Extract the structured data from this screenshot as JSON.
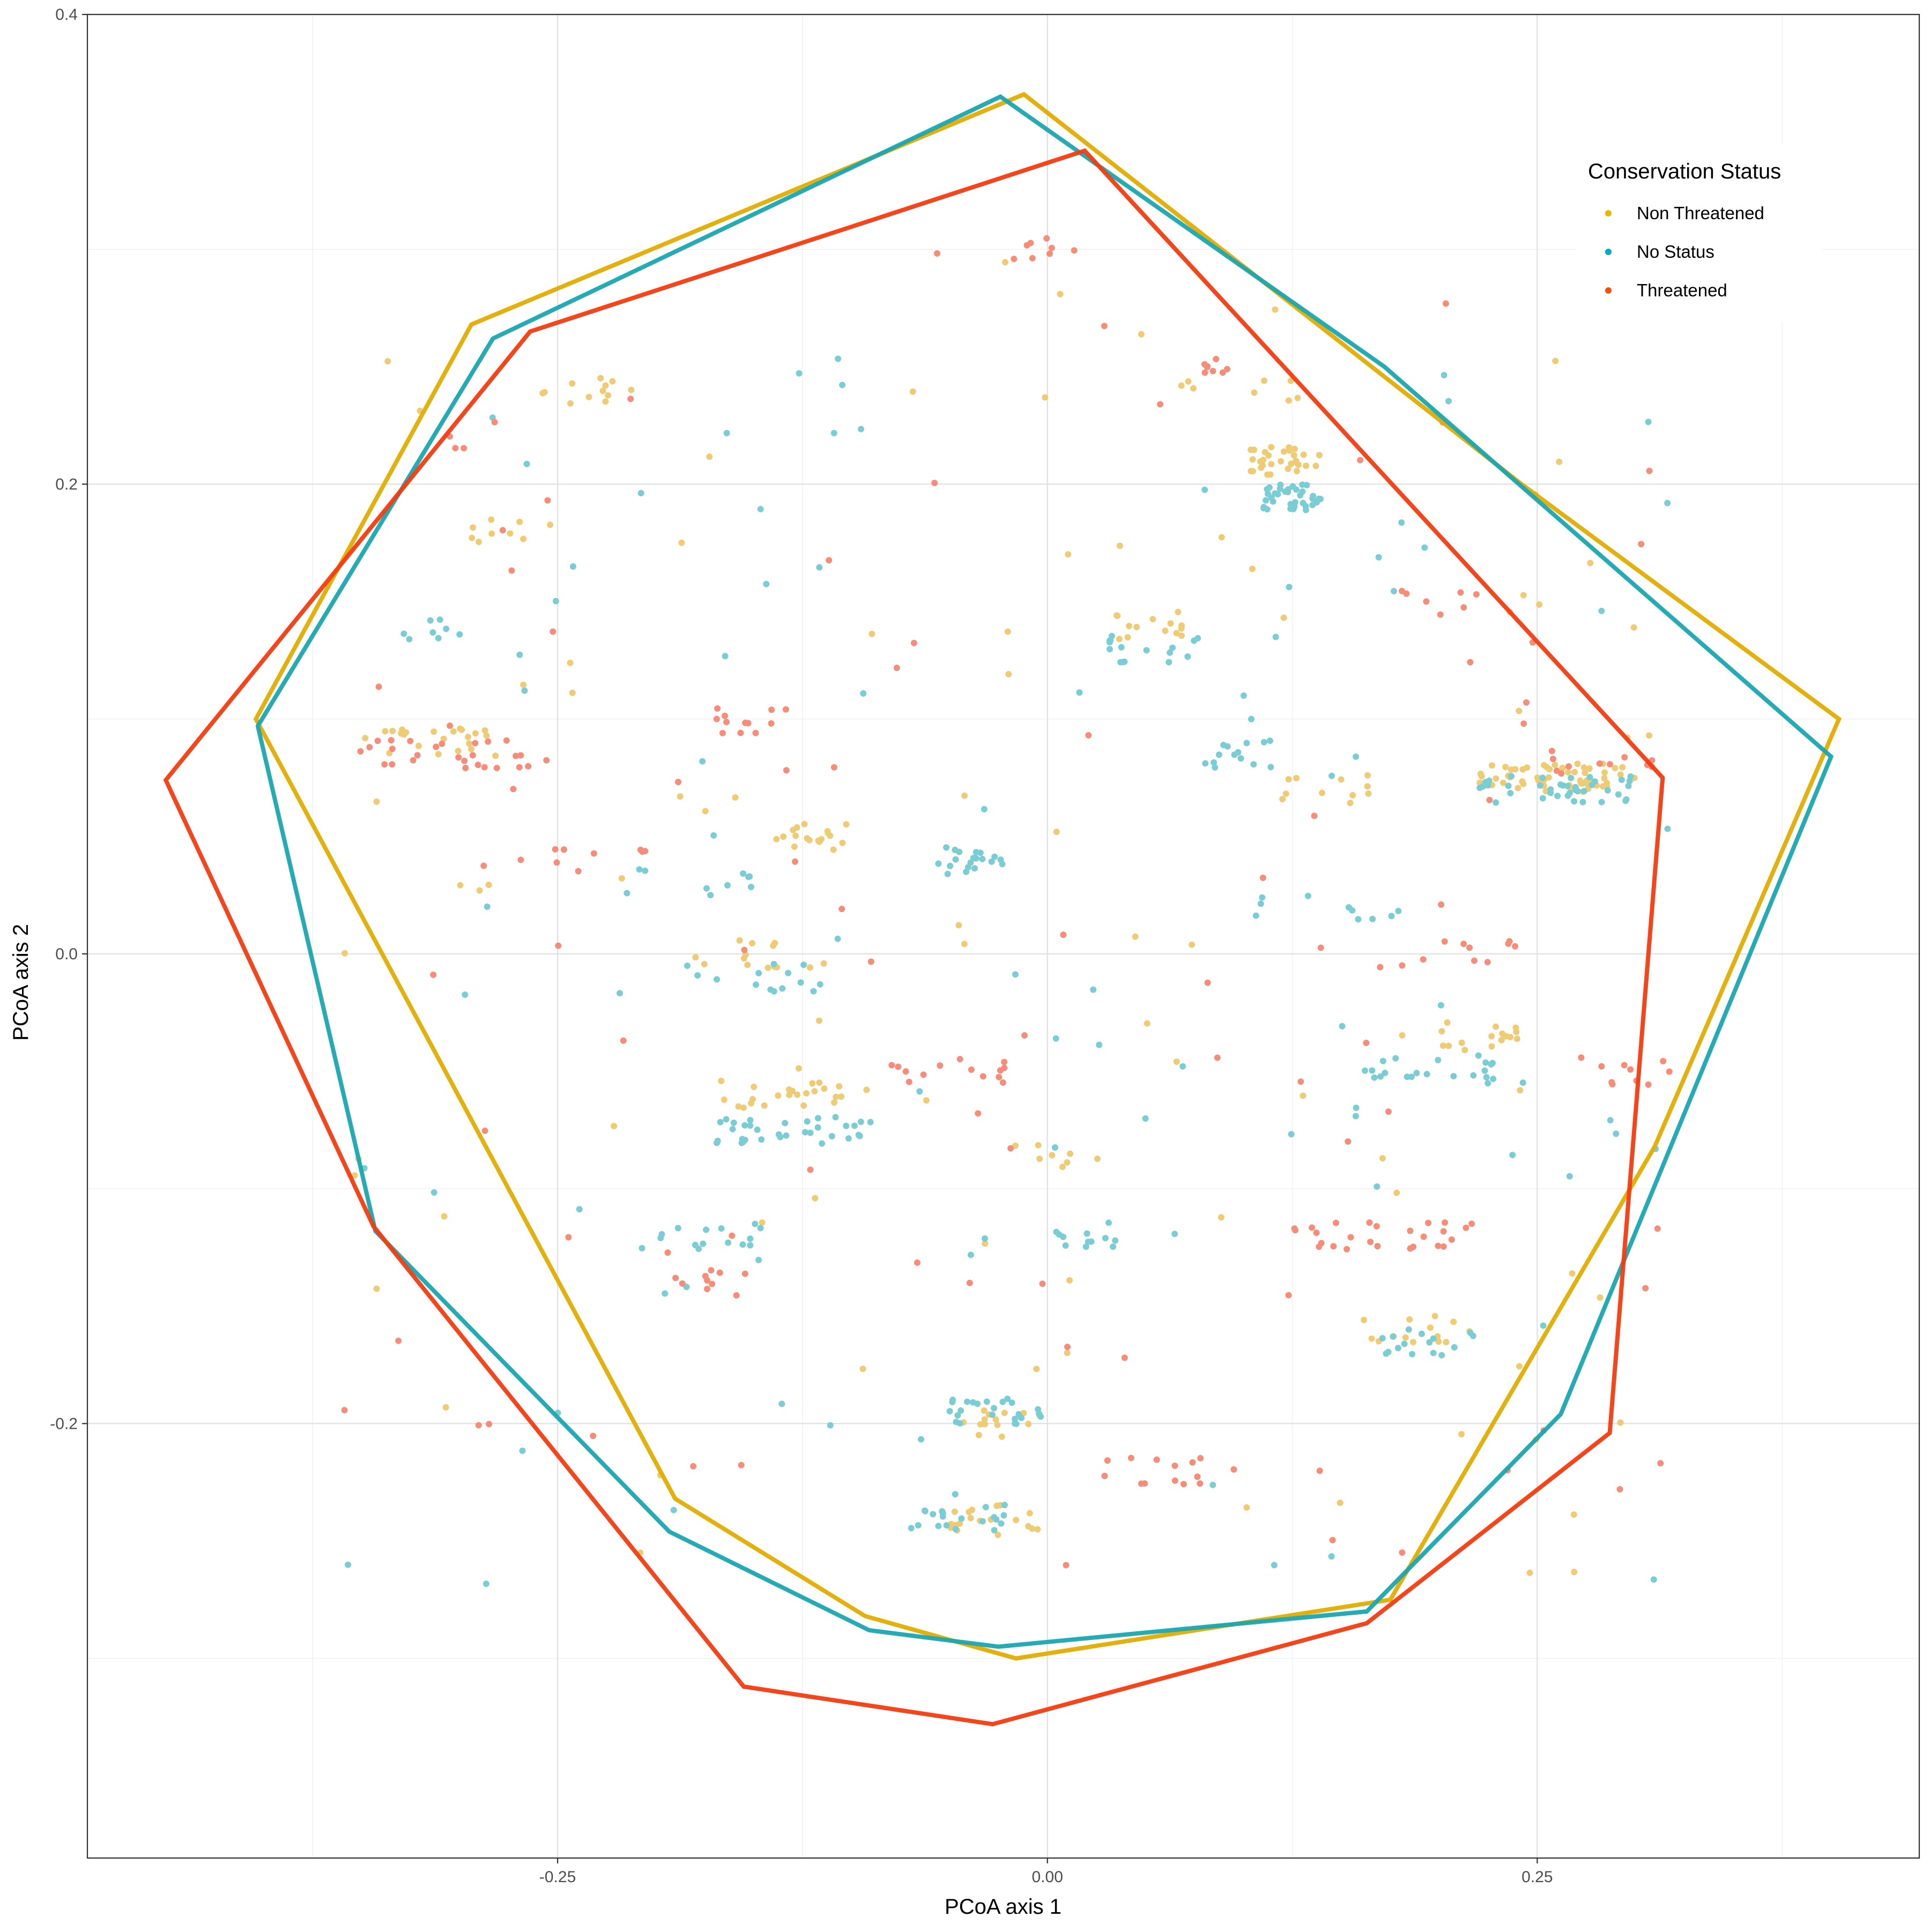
{
  "chart_data": {
    "type": "scatter",
    "title": "",
    "xlabel": "PCoA axis 1",
    "ylabel": "PCoA axis 2",
    "xlim": [
      -0.49,
      0.445
    ],
    "ylim": [
      -0.385,
      0.4
    ],
    "x_ticks": [
      -0.25,
      0.0,
      0.25
    ],
    "x_tick_labels": [
      "-0.25",
      "0.00",
      "0.25"
    ],
    "y_ticks": [
      -0.2,
      0.0,
      0.2,
      0.4
    ],
    "y_tick_labels": [
      "-0.2",
      "0.0",
      "0.2",
      "0.4"
    ],
    "x_minor_ticks": [
      -0.375,
      -0.125,
      0.125,
      0.375
    ],
    "y_minor_ticks": [
      -0.3,
      -0.1,
      0.1,
      0.3
    ],
    "grid": true,
    "legend": {
      "title": "Conservation Status",
      "position": "top-right",
      "entries": [
        "Non Threatened",
        "No Status",
        "Threatened"
      ]
    },
    "series": [
      {
        "name": "Non Threatened",
        "color": "#E7B800",
        "hull_color": "#E1AD01",
        "points_color": "#EECC75",
        "hull": [
          [
            -0.012,
            0.366
          ],
          [
            0.242,
            0.2
          ],
          [
            0.404,
            0.1
          ],
          [
            0.31,
            -0.082
          ],
          [
            0.175,
            -0.275
          ],
          [
            -0.016,
            -0.3
          ],
          [
            -0.093,
            -0.282
          ],
          [
            -0.19,
            -0.232
          ],
          [
            -0.404,
            0.1
          ],
          [
            -0.294,
            0.268
          ],
          [
            -0.012,
            0.366
          ]
        ],
        "clusters": [
          {
            "x0": 0.22,
            "x1": 0.3,
            "y": 0.075,
            "n": 60
          },
          {
            "x0": 0.1,
            "x1": 0.14,
            "y": 0.21,
            "n": 30
          },
          {
            "x0": -0.14,
            "x1": -0.1,
            "y": 0.05,
            "n": 18
          },
          {
            "x0": -0.35,
            "x1": -0.28,
            "y": 0.09,
            "n": 22
          },
          {
            "x0": -0.17,
            "x1": -0.09,
            "y": -0.06,
            "n": 24
          },
          {
            "x0": 0.2,
            "x1": 0.24,
            "y": -0.035,
            "n": 16
          },
          {
            "x0": 0.16,
            "x1": 0.22,
            "y": -0.16,
            "n": 14
          },
          {
            "x0": -0.05,
            "x1": 0.0,
            "y": -0.24,
            "n": 18
          },
          {
            "x0": -0.05,
            "x1": 0.0,
            "y": -0.2,
            "n": 14
          },
          {
            "x0": 0.03,
            "x1": 0.07,
            "y": 0.14,
            "n": 14
          },
          {
            "x0": -0.27,
            "x1": -0.21,
            "y": 0.24,
            "n": 12
          },
          {
            "x0": -0.18,
            "x1": -0.11,
            "y": 0.0,
            "n": 14
          },
          {
            "x0": -0.02,
            "x1": 0.03,
            "y": -0.085,
            "n": 8
          },
          {
            "x0": 0.06,
            "x1": 0.14,
            "y": 0.24,
            "n": 8
          },
          {
            "x0": 0.11,
            "x1": 0.17,
            "y": 0.07,
            "n": 10
          },
          {
            "x0": -0.31,
            "x1": -0.25,
            "y": 0.18,
            "n": 8
          }
        ]
      },
      {
        "name": "No Status",
        "color": "#00AFBB",
        "hull_color": "#1AA6B0",
        "points_color": "#7ACDD3",
        "hull": [
          [
            -0.024,
            0.365
          ],
          [
            0.172,
            0.25
          ],
          [
            0.4,
            0.084
          ],
          [
            0.262,
            -0.196
          ],
          [
            0.163,
            -0.28
          ],
          [
            -0.025,
            -0.295
          ],
          [
            -0.091,
            -0.288
          ],
          [
            -0.193,
            -0.246
          ],
          [
            -0.343,
            -0.118
          ],
          [
            -0.403,
            0.097
          ],
          [
            -0.283,
            0.262
          ],
          [
            -0.024,
            0.365
          ]
        ],
        "clusters": [
          {
            "x0": 0.11,
            "x1": 0.14,
            "y": 0.195,
            "n": 36
          },
          {
            "x0": -0.17,
            "x1": -0.09,
            "y": -0.075,
            "n": 34
          },
          {
            "x0": 0.22,
            "x1": 0.3,
            "y": 0.07,
            "n": 40
          },
          {
            "x0": -0.06,
            "x1": -0.02,
            "y": 0.04,
            "n": 20
          },
          {
            "x0": -0.05,
            "x1": 0.0,
            "y": -0.195,
            "n": 24
          },
          {
            "x0": -0.08,
            "x1": -0.02,
            "y": -0.24,
            "n": 20
          },
          {
            "x0": 0.16,
            "x1": 0.23,
            "y": -0.05,
            "n": 20
          },
          {
            "x0": 0.17,
            "x1": 0.22,
            "y": -0.165,
            "n": 16
          },
          {
            "x0": -0.19,
            "x1": -0.11,
            "y": -0.01,
            "n": 14
          },
          {
            "x0": -0.21,
            "x1": -0.14,
            "y": -0.12,
            "n": 14
          },
          {
            "x0": 0.03,
            "x1": 0.08,
            "y": 0.13,
            "n": 16
          },
          {
            "x0": 0.08,
            "x1": 0.12,
            "y": 0.085,
            "n": 14
          },
          {
            "x0": -0.23,
            "x1": -0.15,
            "y": 0.03,
            "n": 10
          },
          {
            "x0": 0.0,
            "x1": 0.05,
            "y": -0.12,
            "n": 12
          },
          {
            "x0": 0.1,
            "x1": 0.18,
            "y": 0.02,
            "n": 10
          },
          {
            "x0": -0.35,
            "x1": -0.3,
            "y": 0.14,
            "n": 8
          }
        ]
      },
      {
        "name": "Threatened",
        "color": "#FC4E07",
        "hull_color": "#F23C10",
        "points_color": "#F68C7A",
        "hull": [
          [
            0.019,
            0.342
          ],
          [
            0.314,
            0.075
          ],
          [
            0.287,
            -0.204
          ],
          [
            0.163,
            -0.285
          ],
          [
            -0.028,
            -0.328
          ],
          [
            -0.155,
            -0.312
          ],
          [
            -0.344,
            -0.116
          ],
          [
            -0.45,
            0.074
          ],
          [
            -0.264,
            0.265
          ],
          [
            0.019,
            0.342
          ]
        ],
        "clusters": [
          {
            "x0": -0.35,
            "x1": -0.26,
            "y": 0.085,
            "n": 24
          },
          {
            "x0": 0.12,
            "x1": 0.22,
            "y": -0.12,
            "n": 26
          },
          {
            "x0": -0.17,
            "x1": -0.13,
            "y": 0.1,
            "n": 12
          },
          {
            "x0": -0.09,
            "x1": -0.02,
            "y": -0.05,
            "n": 14
          },
          {
            "x0": 0.02,
            "x1": 0.1,
            "y": -0.22,
            "n": 14
          },
          {
            "x0": 0.27,
            "x1": 0.32,
            "y": -0.05,
            "n": 10
          },
          {
            "x0": -0.02,
            "x1": 0.02,
            "y": 0.3,
            "n": 8
          },
          {
            "x0": 0.08,
            "x1": 0.1,
            "y": 0.25,
            "n": 8
          },
          {
            "x0": 0.18,
            "x1": 0.24,
            "y": 0.0,
            "n": 10
          },
          {
            "x0": -0.2,
            "x1": -0.15,
            "y": -0.14,
            "n": 10
          },
          {
            "x0": 0.25,
            "x1": 0.32,
            "y": 0.08,
            "n": 10
          },
          {
            "x0": -0.27,
            "x1": -0.2,
            "y": 0.04,
            "n": 8
          },
          {
            "x0": 0.18,
            "x1": 0.22,
            "y": 0.15,
            "n": 6
          }
        ]
      }
    ]
  }
}
